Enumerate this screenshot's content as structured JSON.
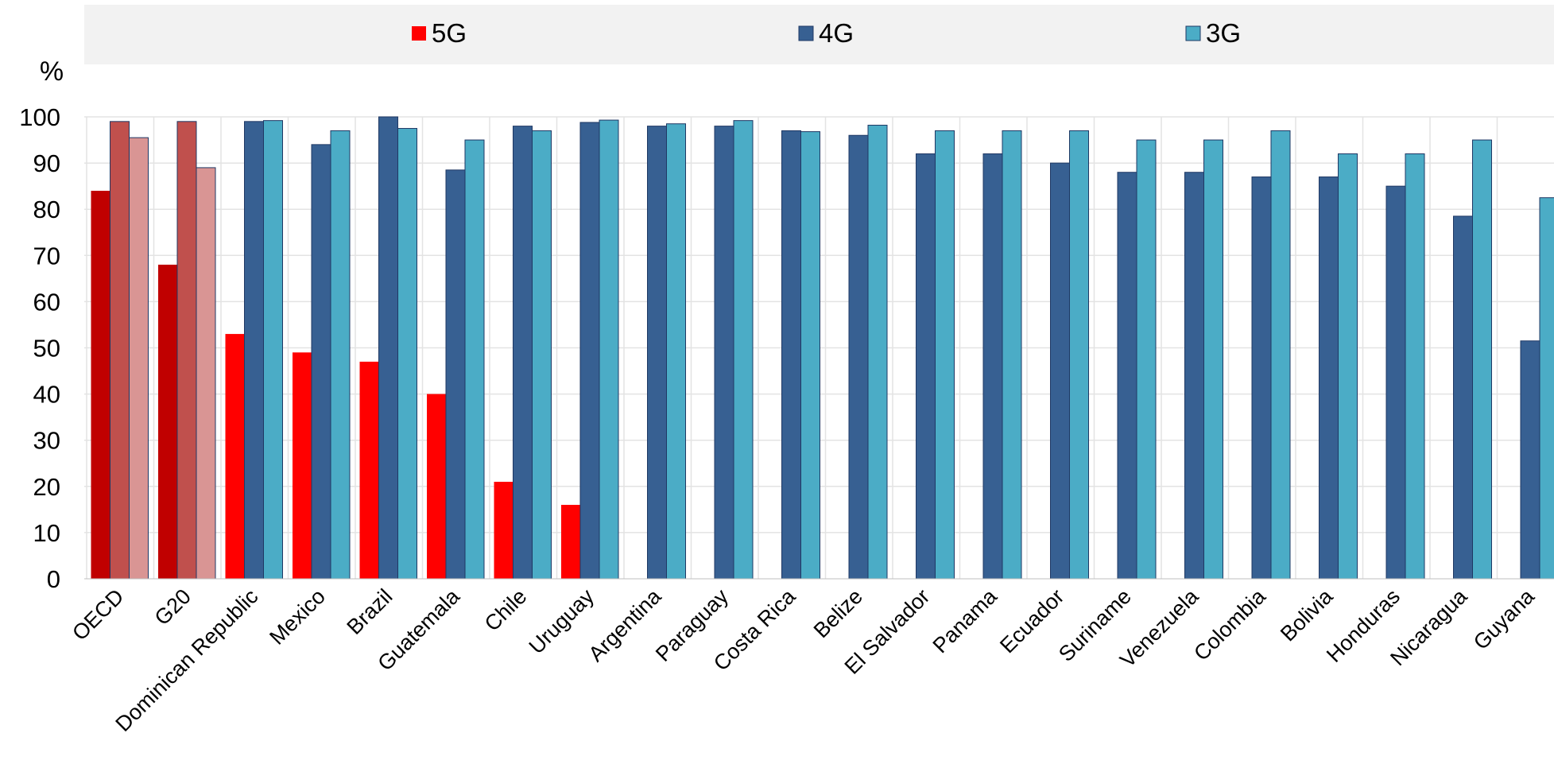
{
  "chart_data": {
    "type": "bar",
    "ylabel": "%",
    "ylim": [
      0,
      100
    ],
    "yticks": [
      0,
      10,
      20,
      30,
      40,
      50,
      60,
      70,
      80,
      90,
      100
    ],
    "grid": true,
    "legend_position": "top",
    "categories": [
      "OECD",
      "G20",
      "Dominican Republic",
      "Mexico",
      "Brazil",
      "Guatemala",
      "Chile",
      "Uruguay",
      "Argentina",
      "Paraguay",
      "Costa Rica",
      "Belize",
      "El Salvador",
      "Panama",
      "Ecuador",
      "Suriname",
      "Venezuela",
      "Colombia",
      "Bolivia",
      "Honduras",
      "Nicaragua",
      "Guyana"
    ],
    "highlighted_categories": [
      "OECD",
      "G20"
    ],
    "series": [
      {
        "name": "5G",
        "color": "#FF0000",
        "highlight_color": "#C00000",
        "values": [
          84,
          68,
          53,
          49,
          47,
          40,
          21,
          16,
          0,
          0,
          0,
          0,
          0,
          0,
          0,
          0,
          0,
          0,
          0,
          0,
          0,
          0
        ]
      },
      {
        "name": "4G",
        "color": "#376092",
        "highlight_color": "#C0504D",
        "values": [
          99,
          99,
          99,
          94,
          100,
          88.5,
          98,
          98.8,
          98,
          98,
          97,
          96,
          92,
          92,
          90,
          88,
          88,
          87,
          87,
          85,
          78.5,
          51.5
        ]
      },
      {
        "name": "3G",
        "color": "#4BACC6",
        "highlight_color": "#D99594",
        "values": [
          95.5,
          89,
          99.2,
          97,
          97.5,
          95,
          97,
          99.3,
          98.5,
          99.2,
          96.8,
          98.2,
          97,
          97,
          97,
          95,
          95,
          97,
          92,
          92,
          95,
          82.5
        ]
      }
    ]
  }
}
